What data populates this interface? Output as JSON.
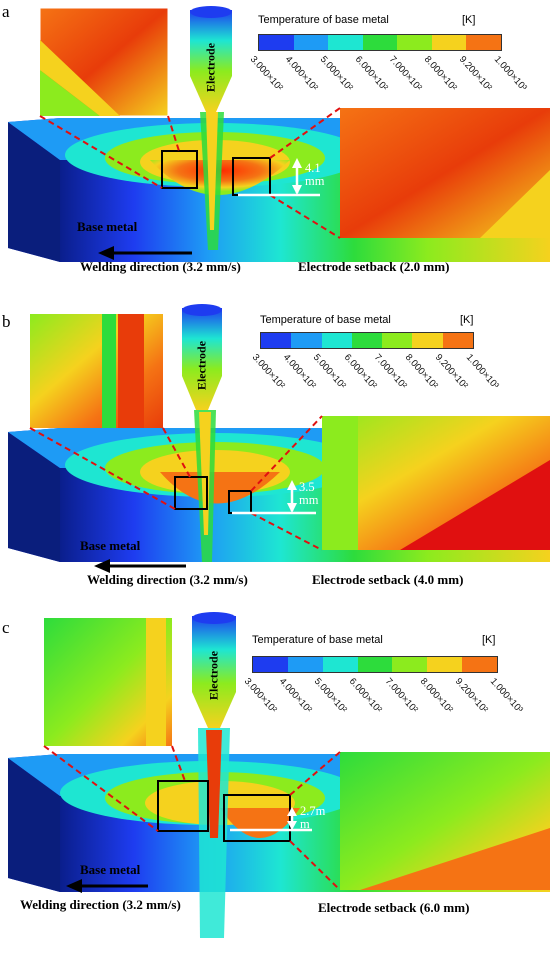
{
  "legend": {
    "title": "Temperature of base metal",
    "unit": "[K]",
    "colors": [
      "#1e3cf0",
      "#1e9bf5",
      "#1ee6d2",
      "#2ddc3c",
      "#8ceb1e",
      "#f5d21e",
      "#f57314"
    ],
    "ticks": [
      "3.000×10²",
      "4.000×10²",
      "5.000×10²",
      "6.000×10²",
      "7.000×10²",
      "8.000×10²",
      "9.200×10²",
      "1.000×10³"
    ]
  },
  "panels": [
    {
      "letter": "a",
      "electrode": "Electrode",
      "base_metal": "Base metal",
      "welding": "Welding  direction (3.2 mm/s)",
      "setback": "Electrode setback (2.0 mm)",
      "depth": [
        "4.1",
        "mm"
      ]
    },
    {
      "letter": "b",
      "electrode": "Electrode",
      "base_metal": "Base metal",
      "welding": "Welding  direction (3.2 mm/s)",
      "setback": "Electrode setback (4.0 mm)",
      "depth": [
        "3.5",
        "mm"
      ]
    },
    {
      "letter": "c",
      "electrode": "Electrode",
      "base_metal": "Base metal",
      "welding": "Welding  direction (3.2 mm/s)",
      "setback": "Electrode setback (6.0 mm)",
      "depth": [
        "2.7m",
        "m"
      ]
    }
  ]
}
